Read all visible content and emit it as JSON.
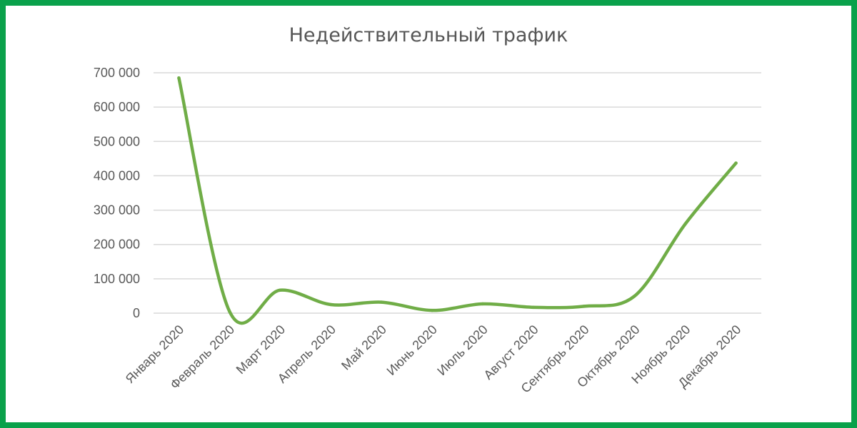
{
  "colors": {
    "frame": "#0aa14b",
    "line": "#70ad47",
    "grid": "#d9d9d9",
    "text": "#595959"
  },
  "chart_data": {
    "type": "line",
    "title": "Недействительный трафик",
    "categories": [
      "Январь 2020",
      "Февраль 2020",
      "Март 2020",
      "Апрель 2020",
      "Май 2020",
      "Июнь 2020",
      "Июль 2020",
      "Август 2020",
      "Сентябрь 2020",
      "Октябрь 2020",
      "Ноябрь 2020",
      "Декабрь 2020"
    ],
    "series": [
      {
        "values": [
          685000,
          5000,
          67000,
          25000,
          32000,
          8000,
          27000,
          17000,
          20000,
          50000,
          260000,
          437000
        ]
      }
    ],
    "y_ticks": [
      0,
      100000,
      200000,
      300000,
      400000,
      500000,
      600000,
      700000
    ],
    "y_tick_labels": [
      "0",
      "100 000",
      "200 000",
      "300 000",
      "400 000",
      "500 000",
      "600 000",
      "700 000"
    ],
    "ylim": [
      0,
      700000
    ],
    "grid": true,
    "smooth": true,
    "legend": "none"
  }
}
